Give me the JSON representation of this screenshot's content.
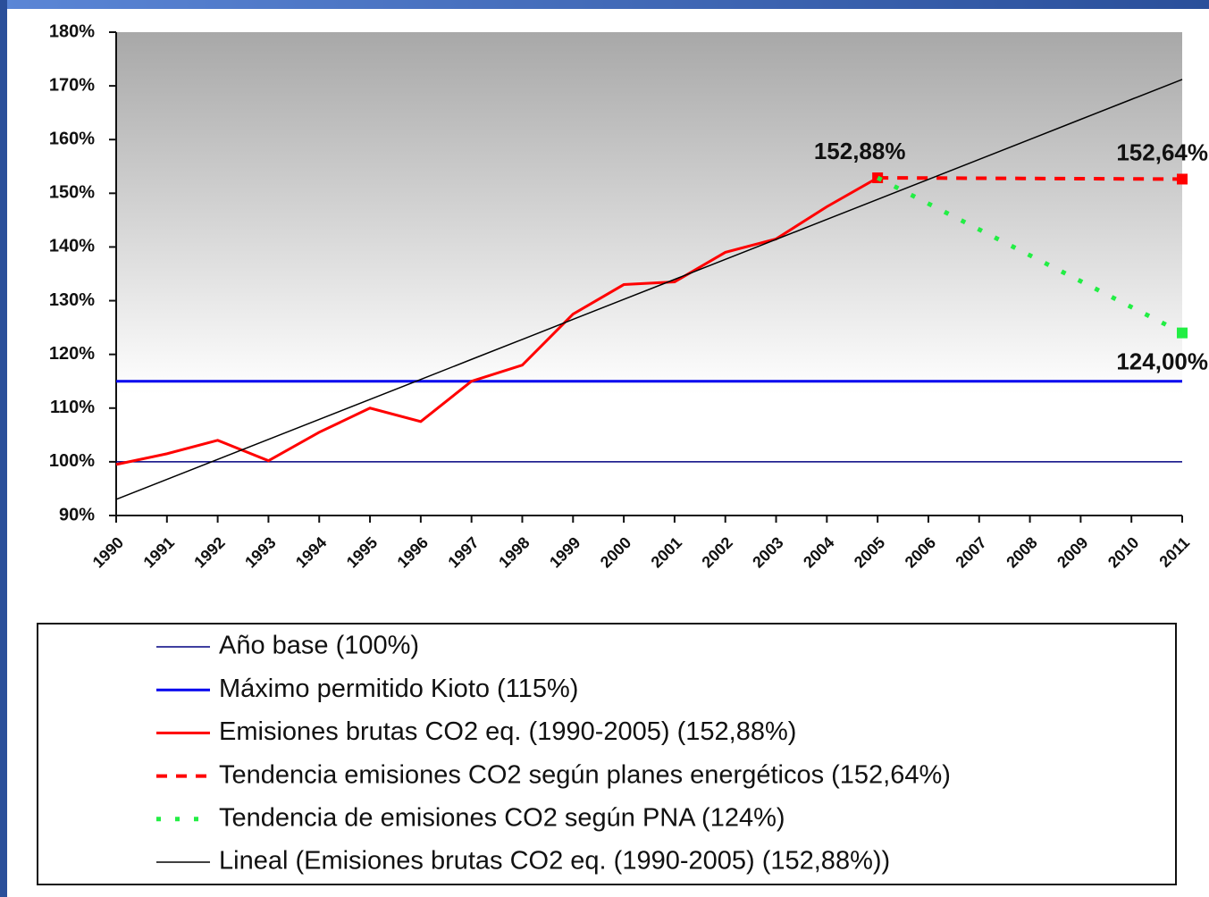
{
  "chart_data": {
    "type": "line",
    "categories": [
      "1990",
      "1991",
      "1992",
      "1993",
      "1994",
      "1995",
      "1996",
      "1997",
      "1998",
      "1999",
      "2000",
      "2001",
      "2002",
      "2003",
      "2004",
      "2005",
      "2006",
      "2007",
      "2008",
      "2009",
      "2010",
      "2011"
    ],
    "ylim": [
      90,
      180
    ],
    "yticks": [
      {
        "value": 90,
        "label": "90%"
      },
      {
        "value": 100,
        "label": "100%"
      },
      {
        "value": 110,
        "label": "110%"
      },
      {
        "value": 120,
        "label": "120%"
      },
      {
        "value": 130,
        "label": "130%"
      },
      {
        "value": 140,
        "label": "140%"
      },
      {
        "value": 150,
        "label": "150%"
      },
      {
        "value": 160,
        "label": "160%"
      },
      {
        "value": 170,
        "label": "170%"
      },
      {
        "value": 180,
        "label": "180%"
      }
    ],
    "grid": false,
    "legend": "bottom",
    "series": [
      {
        "name": "Año base (100%)",
        "color": "#000080",
        "line_style": "solid",
        "values": [
          100,
          100,
          100,
          100,
          100,
          100,
          100,
          100,
          100,
          100,
          100,
          100,
          100,
          100,
          100,
          100,
          100,
          100,
          100,
          100,
          100,
          100
        ]
      },
      {
        "name": "Máximo permitido Kioto (115%)",
        "color": "#0000ee",
        "line_style": "solid",
        "values": [
          115,
          115,
          115,
          115,
          115,
          115,
          115,
          115,
          115,
          115,
          115,
          115,
          115,
          115,
          115,
          115,
          115,
          115,
          115,
          115,
          115,
          115
        ]
      },
      {
        "name": "Emisiones brutas CO2 eq. (1990-2005) (152,88%)",
        "color": "#ff0000",
        "line_style": "solid",
        "values": [
          99.5,
          101.5,
          104,
          100.2,
          105.5,
          110,
          107.5,
          115,
          118,
          127.5,
          133,
          133.5,
          139,
          141.5,
          147.5,
          152.88,
          null,
          null,
          null,
          null,
          null,
          null
        ],
        "value_labels": [
          null,
          null,
          null,
          null,
          null,
          null,
          null,
          null,
          null,
          null,
          null,
          null,
          null,
          null,
          null,
          "152,88%",
          null,
          null,
          null,
          null,
          null,
          null
        ]
      },
      {
        "name": "Tendencia emisiones CO2 según planes energéticos (152,64%)",
        "color": "#ff0000",
        "line_style": "dashed",
        "values": [
          null,
          null,
          null,
          null,
          null,
          null,
          null,
          null,
          null,
          null,
          null,
          null,
          null,
          null,
          null,
          152.88,
          152.84,
          152.8,
          152.76,
          152.72,
          152.68,
          152.64
        ],
        "value_labels": [
          null,
          null,
          null,
          null,
          null,
          null,
          null,
          null,
          null,
          null,
          null,
          null,
          null,
          null,
          null,
          null,
          null,
          null,
          null,
          null,
          null,
          "152,64%"
        ]
      },
      {
        "name": "Tendencia de emisiones CO2 según PNA (124%)",
        "color": "#22ee44",
        "line_style": "dotted",
        "values": [
          null,
          null,
          null,
          null,
          null,
          null,
          null,
          null,
          null,
          null,
          null,
          null,
          null,
          null,
          null,
          152.88,
          148.07,
          143.26,
          138.44,
          133.63,
          128.81,
          124
        ],
        "value_labels": [
          null,
          null,
          null,
          null,
          null,
          null,
          null,
          null,
          null,
          null,
          null,
          null,
          null,
          null,
          null,
          null,
          null,
          null,
          null,
          null,
          null,
          "124,00%"
        ]
      },
      {
        "name": "Lineal (Emisiones brutas CO2 eq. (1990-2005) (152,88%))",
        "color": "#000000",
        "line_style": "solid",
        "values": [
          93,
          96.72,
          100.45,
          104.17,
          107.9,
          111.62,
          115.34,
          119.07,
          122.79,
          126.52,
          130.24,
          133.96,
          137.69,
          141.41,
          145.14,
          148.86,
          152.58,
          156.31,
          160.03,
          163.76,
          167.48,
          171.2
        ]
      }
    ]
  }
}
